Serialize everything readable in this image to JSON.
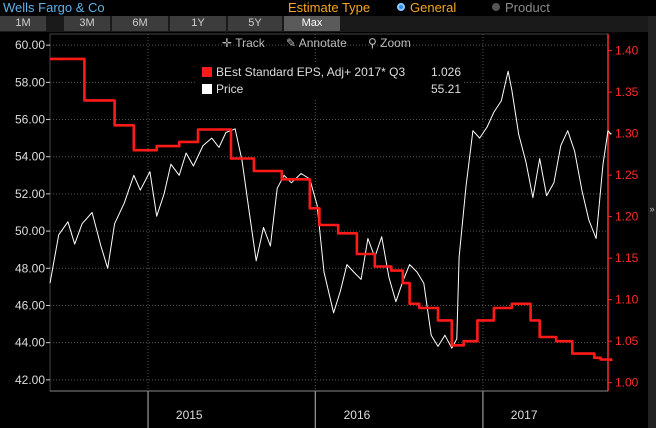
{
  "header": {
    "title": "Wells Fargo & Co",
    "estimate_type_label": "Estimate Type",
    "options": [
      {
        "label": "General",
        "selected": true
      },
      {
        "label": "Product",
        "selected": false
      }
    ]
  },
  "range_tabs": [
    "1M",
    "3M",
    "6M",
    "1Y",
    "5Y",
    "Max"
  ],
  "active_tab": "Max",
  "toolbar": {
    "track_label": "Track",
    "annotate_label": "Annotate",
    "zoom_label": "Zoom"
  },
  "legend": {
    "eps_label": "BEst Standard EPS, Adj+ 2017* Q3",
    "eps_value": "1.026",
    "price_label": "Price",
    "price_value": "55.21"
  },
  "colors": {
    "eps": "#ff1a1a",
    "price": "#ffffff",
    "grid": "#555555",
    "left_axis": "#dddddd",
    "right_axis": "#ff2a2a"
  },
  "chart_data": {
    "type": "line",
    "x_range": [
      "2014-06-01",
      "2017-10-01"
    ],
    "x_ticks": [
      {
        "label": "2015",
        "date": "2015-04-01"
      },
      {
        "label": "2016",
        "date": "2016-04-01"
      },
      {
        "label": "2017",
        "date": "2017-04-01"
      }
    ],
    "year_boundaries": [
      "2015-01-01",
      "2016-01-01",
      "2017-01-01"
    ],
    "y_left": {
      "range": [
        41.4,
        60.6
      ],
      "ticks": [
        "42.00",
        "44.00",
        "46.00",
        "48.00",
        "50.00",
        "52.00",
        "54.00",
        "56.00",
        "58.00",
        "60.00"
      ]
    },
    "y_right": {
      "range": [
        0.99,
        1.42
      ],
      "ticks": [
        "1.00",
        "1.05",
        "1.10",
        "1.15",
        "1.20",
        "1.25",
        "1.30",
        "1.35",
        "1.40"
      ]
    },
    "series": [
      {
        "name": "Price",
        "axis": "left",
        "points": [
          [
            "2014-06-01",
            47.2
          ],
          [
            "2014-06-20",
            49.8
          ],
          [
            "2014-07-10",
            50.5
          ],
          [
            "2014-07-25",
            49.3
          ],
          [
            "2014-08-10",
            50.4
          ],
          [
            "2014-09-01",
            51.0
          ],
          [
            "2014-09-20",
            49.2
          ],
          [
            "2014-10-05",
            48.0
          ],
          [
            "2014-10-20",
            50.4
          ],
          [
            "2014-11-10",
            51.5
          ],
          [
            "2014-12-01",
            53.0
          ],
          [
            "2014-12-15",
            52.2
          ],
          [
            "2015-01-05",
            53.2
          ],
          [
            "2015-01-20",
            50.8
          ],
          [
            "2015-02-05",
            52.0
          ],
          [
            "2015-02-20",
            53.6
          ],
          [
            "2015-03-10",
            53.0
          ],
          [
            "2015-03-25",
            54.2
          ],
          [
            "2015-04-10",
            53.5
          ],
          [
            "2015-05-01",
            54.6
          ],
          [
            "2015-05-20",
            55.0
          ],
          [
            "2015-06-05",
            54.5
          ],
          [
            "2015-06-20",
            55.3
          ],
          [
            "2015-07-10",
            55.5
          ],
          [
            "2015-07-25",
            53.8
          ],
          [
            "2015-08-10",
            51.0
          ],
          [
            "2015-08-25",
            48.4
          ],
          [
            "2015-09-10",
            50.2
          ],
          [
            "2015-09-25",
            49.2
          ],
          [
            "2015-10-10",
            52.3
          ],
          [
            "2015-10-25",
            53.0
          ],
          [
            "2015-11-10",
            52.6
          ],
          [
            "2015-12-01",
            53.1
          ],
          [
            "2015-12-20",
            52.8
          ],
          [
            "2016-01-05",
            51.4
          ],
          [
            "2016-01-20",
            47.8
          ],
          [
            "2016-02-10",
            45.6
          ],
          [
            "2016-02-25",
            46.8
          ],
          [
            "2016-03-10",
            48.2
          ],
          [
            "2016-03-25",
            47.8
          ],
          [
            "2016-04-10",
            47.4
          ],
          [
            "2016-04-25",
            49.6
          ],
          [
            "2016-05-10",
            48.6
          ],
          [
            "2016-05-25",
            49.7
          ],
          [
            "2016-06-10",
            47.5
          ],
          [
            "2016-06-25",
            46.2
          ],
          [
            "2016-07-10",
            47.3
          ],
          [
            "2016-07-25",
            48.2
          ],
          [
            "2016-08-10",
            47.8
          ],
          [
            "2016-08-25",
            47.2
          ],
          [
            "2016-09-10",
            44.4
          ],
          [
            "2016-09-25",
            43.8
          ],
          [
            "2016-10-10",
            44.4
          ],
          [
            "2016-10-25",
            43.7
          ],
          [
            "2016-11-05",
            44.2
          ],
          [
            "2016-11-10",
            48.6
          ],
          [
            "2016-11-25",
            52.4
          ],
          [
            "2016-12-10",
            55.4
          ],
          [
            "2016-12-25",
            55.0
          ],
          [
            "2017-01-10",
            55.6
          ],
          [
            "2017-01-25",
            56.4
          ],
          [
            "2017-02-10",
            57.0
          ],
          [
            "2017-02-25",
            58.6
          ],
          [
            "2017-03-05",
            57.6
          ],
          [
            "2017-03-20",
            55.2
          ],
          [
            "2017-04-05",
            53.7
          ],
          [
            "2017-04-20",
            51.8
          ],
          [
            "2017-05-05",
            53.9
          ],
          [
            "2017-05-20",
            51.9
          ],
          [
            "2017-06-05",
            52.6
          ],
          [
            "2017-06-20",
            54.6
          ],
          [
            "2017-07-05",
            55.4
          ],
          [
            "2017-07-20",
            54.3
          ],
          [
            "2017-08-05",
            52.2
          ],
          [
            "2017-08-20",
            50.6
          ],
          [
            "2017-09-05",
            49.6
          ],
          [
            "2017-09-20",
            53.6
          ],
          [
            "2017-10-01",
            55.4
          ],
          [
            "2017-10-08",
            55.2
          ]
        ]
      },
      {
        "name": "BEst Standard EPS, Adj+ 2017* Q3",
        "axis": "right",
        "step": true,
        "points": [
          [
            "2014-06-01",
            1.39
          ],
          [
            "2014-08-15",
            1.34
          ],
          [
            "2014-10-20",
            1.31
          ],
          [
            "2014-12-01",
            1.28
          ],
          [
            "2015-01-20",
            1.285
          ],
          [
            "2015-03-10",
            1.29
          ],
          [
            "2015-04-20",
            1.305
          ],
          [
            "2015-07-01",
            1.27
          ],
          [
            "2015-08-20",
            1.255
          ],
          [
            "2015-10-20",
            1.245
          ],
          [
            "2015-12-20",
            1.21
          ],
          [
            "2016-01-10",
            1.19
          ],
          [
            "2016-02-20",
            1.18
          ],
          [
            "2016-04-01",
            1.155
          ],
          [
            "2016-05-10",
            1.14
          ],
          [
            "2016-06-15",
            1.135
          ],
          [
            "2016-07-10",
            1.12
          ],
          [
            "2016-07-25",
            1.095
          ],
          [
            "2016-08-15",
            1.09
          ],
          [
            "2016-09-25",
            1.075
          ],
          [
            "2016-10-25",
            1.045
          ],
          [
            "2016-11-20",
            1.05
          ],
          [
            "2016-12-20",
            1.075
          ],
          [
            "2017-01-25",
            1.09
          ],
          [
            "2017-03-05",
            1.095
          ],
          [
            "2017-04-15",
            1.075
          ],
          [
            "2017-05-05",
            1.055
          ],
          [
            "2017-06-10",
            1.05
          ],
          [
            "2017-07-15",
            1.035
          ],
          [
            "2017-09-01",
            1.03
          ],
          [
            "2017-09-15",
            1.028
          ],
          [
            "2017-10-08",
            1.026
          ]
        ]
      }
    ],
    "grid": true
  }
}
